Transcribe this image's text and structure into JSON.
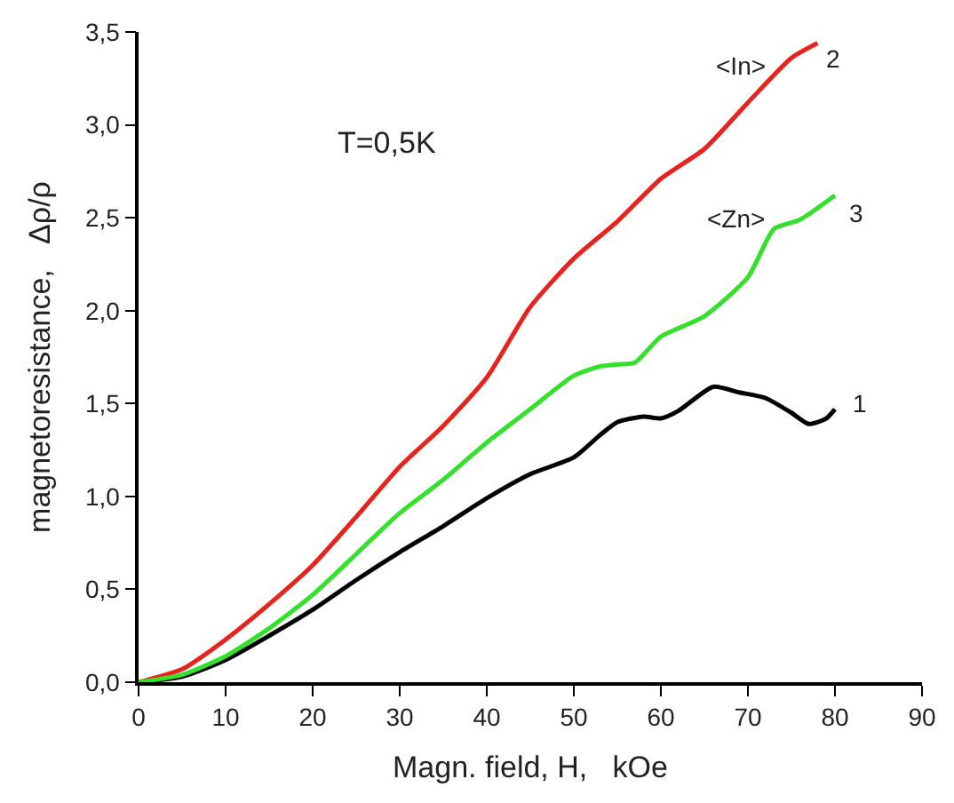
{
  "chart_data": {
    "type": "line",
    "xlabel": "Magn. field, H,   kOe",
    "ylabel": "magnetoresistance,   Δρ/ρ",
    "xlim": [
      0,
      90
    ],
    "xticks": [
      0,
      10,
      20,
      30,
      40,
      50,
      60,
      70,
      80,
      90
    ],
    "ylim": [
      0,
      3.5
    ],
    "yticks": [
      {
        "value": 0,
        "label": "0,0"
      },
      {
        "value": 0.5,
        "label": "0,5"
      },
      {
        "value": 1,
        "label": "1,0"
      },
      {
        "value": 1.5,
        "label": "1,5"
      },
      {
        "value": 2,
        "label": "2,0"
      },
      {
        "value": 2.5,
        "label": "2,5"
      },
      {
        "value": 3,
        "label": "3,0"
      },
      {
        "value": 3.5,
        "label": "3,5"
      }
    ],
    "marker": "none",
    "line_style": "solid",
    "series": [
      {
        "color": "#000000",
        "x": [
          0,
          5,
          10,
          15,
          20,
          25,
          30,
          35,
          40,
          45,
          50,
          53,
          55,
          58,
          60,
          62,
          66,
          69,
          72,
          75,
          77,
          79,
          80
        ],
        "values": [
          0,
          0.03,
          0.12,
          0.25,
          0.39,
          0.55,
          0.7,
          0.84,
          0.99,
          1.12,
          1.21,
          1.33,
          1.4,
          1.43,
          1.42,
          1.46,
          1.59,
          1.56,
          1.53,
          1.45,
          1.39,
          1.42,
          1.47
        ]
      },
      {
        "color": "#e8231e",
        "x": [
          0,
          5,
          10,
          15,
          20,
          25,
          30,
          35,
          40,
          45,
          50,
          55,
          60,
          65,
          70,
          75,
          78
        ],
        "values": [
          0,
          0.07,
          0.23,
          0.42,
          0.63,
          0.89,
          1.16,
          1.38,
          1.64,
          2.02,
          2.28,
          2.48,
          2.71,
          2.87,
          3.12,
          3.36,
          3.44
        ]
      },
      {
        "color": "#33e02a",
        "x": [
          0,
          5,
          10,
          15,
          20,
          25,
          30,
          35,
          40,
          45,
          50,
          53,
          55,
          57,
          60,
          65,
          70,
          73,
          76,
          80
        ],
        "values": [
          0,
          0.04,
          0.14,
          0.29,
          0.47,
          0.69,
          0.91,
          1.09,
          1.29,
          1.47,
          1.65,
          1.7,
          1.71,
          1.72,
          1.86,
          1.97,
          2.18,
          2.44,
          2.49,
          2.62
        ]
      }
    ],
    "annotations": [
      "T=0,5K",
      "1",
      "2",
      "<In>",
      "3",
      "<Zn>"
    ]
  }
}
